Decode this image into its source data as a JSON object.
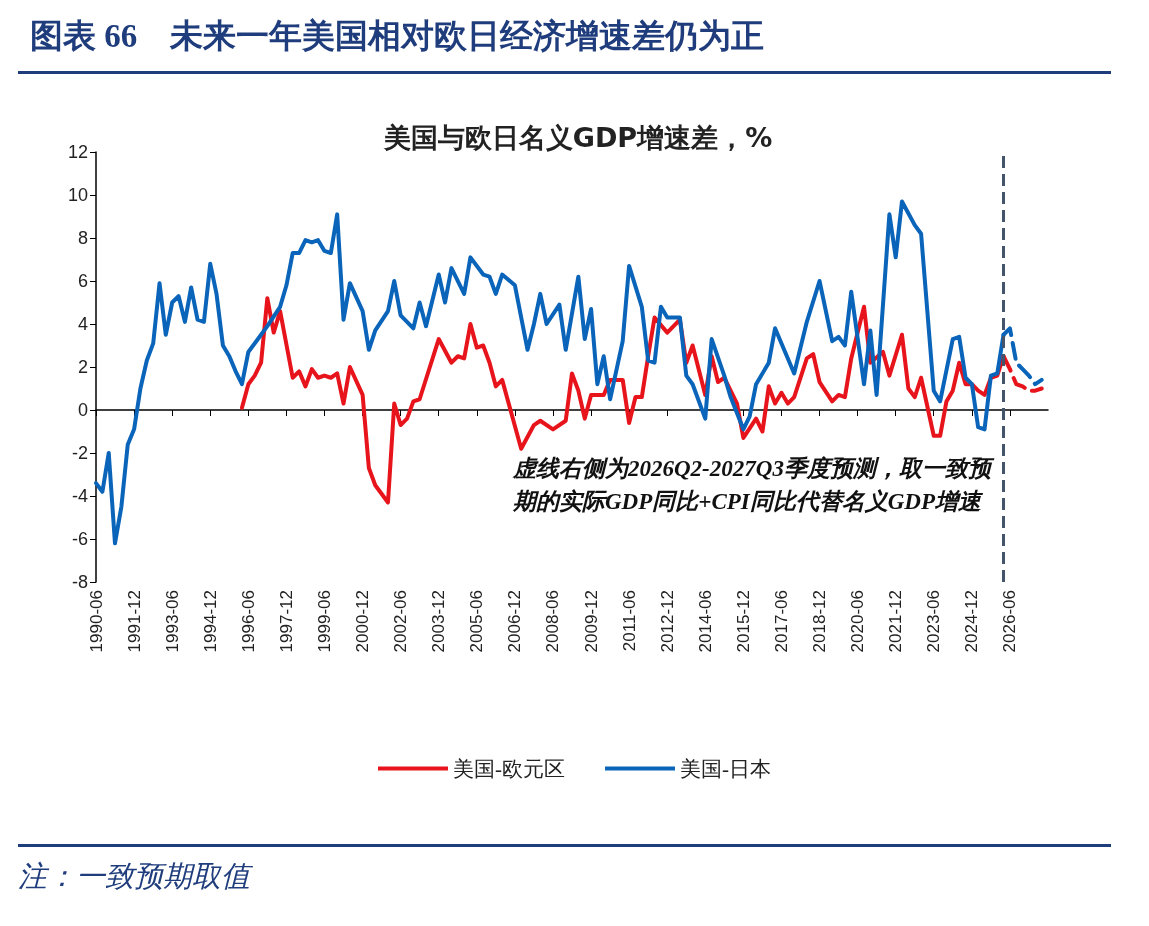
{
  "chart_data": {
    "type": "line",
    "title": "图表 66　未来一年美国相对欧日经济增速差仍为正",
    "subtitle": "美国与欧日名义GDP增速差，%",
    "series": [
      {
        "name": "美国-欧元区",
        "color": "#e8141c",
        "x": [
          "1996-03",
          "1996-06",
          "1996-09",
          "1996-12",
          "1997-03",
          "1997-06",
          "1997-09",
          "1998-03",
          "1998-06",
          "1998-09",
          "1998-12",
          "1999-03",
          "1999-06",
          "1999-09",
          "1999-12",
          "2000-03",
          "2000-06",
          "2000-12",
          "2001-03",
          "2001-06",
          "2001-12",
          "2002-03",
          "2002-06",
          "2002-09",
          "2002-12",
          "2003-03",
          "2003-12",
          "2004-06",
          "2004-09",
          "2004-12",
          "2005-03",
          "2005-06",
          "2005-09",
          "2005-12",
          "2006-03",
          "2006-06",
          "2007-03",
          "2007-09",
          "2007-12",
          "2008-06",
          "2008-12",
          "2009-03",
          "2009-06",
          "2009-09",
          "2009-12",
          "2010-06",
          "2010-09",
          "2011-03",
          "2011-06",
          "2011-09",
          "2011-12",
          "2012-03",
          "2012-06",
          "2012-12",
          "2013-06",
          "2013-09",
          "2013-12",
          "2014-06",
          "2014-09",
          "2014-12",
          "2015-03",
          "2015-06",
          "2015-09",
          "2015-12",
          "2016-06",
          "2016-09",
          "2016-12",
          "2017-03",
          "2017-06",
          "2017-09",
          "2017-12",
          "2018-06",
          "2018-09",
          "2018-12",
          "2019-06",
          "2019-09",
          "2019-12",
          "2020-03",
          "2020-09",
          "2020-12",
          "2021-06",
          "2021-09",
          "2022-03",
          "2022-06",
          "2022-09",
          "2022-12",
          "2023-06",
          "2023-09",
          "2023-12",
          "2024-03",
          "2024-06",
          "2024-09",
          "2024-12",
          "2025-03",
          "2025-06",
          "2025-09",
          "2025-12",
          "2026-03"
        ],
        "values": [
          0.1,
          1.2,
          1.6,
          2.2,
          5.2,
          3.6,
          4.6,
          1.5,
          1.8,
          1.1,
          1.9,
          1.5,
          1.6,
          1.5,
          1.7,
          0.3,
          2.0,
          0.7,
          -2.7,
          -3.5,
          -4.3,
          0.3,
          -0.7,
          -0.4,
          0.4,
          0.5,
          3.3,
          2.2,
          2.5,
          2.4,
          4.0,
          2.9,
          3.0,
          2.2,
          1.1,
          1.4,
          -1.8,
          -0.7,
          -0.5,
          -0.9,
          -0.5,
          1.7,
          0.9,
          -0.4,
          0.7,
          0.7,
          1.4,
          1.4,
          -0.6,
          0.6,
          0.6,
          2.5,
          4.3,
          3.6,
          4.2,
          2.2,
          3.0,
          0.7,
          2.5,
          1.3,
          1.5,
          0.9,
          0.3,
          -1.3,
          -0.4,
          -1.0,
          1.1,
          0.3,
          0.8,
          0.3,
          0.6,
          2.4,
          2.6,
          1.3,
          0.4,
          0.7,
          0.6,
          2.4,
          4.8,
          2.2,
          2.7,
          1.6,
          3.5,
          1.0,
          0.6,
          1.5,
          -1.2,
          -1.2,
          0.4,
          0.9,
          2.2,
          1.2,
          1.2,
          0.9,
          0.7,
          1.5,
          1.6,
          2.5
        ]
      },
      {
        "name": "美国-日本",
        "color": "#0a64b9",
        "x": [
          "1990-06",
          "1990-09",
          "1990-12",
          "1991-03",
          "1991-06",
          "1991-09",
          "1991-12",
          "1992-03",
          "1992-06",
          "1992-09",
          "1992-12",
          "1993-03",
          "1993-06",
          "1993-09",
          "1993-12",
          "1994-03",
          "1994-06",
          "1994-09",
          "1994-12",
          "1995-03",
          "1995-06",
          "1995-09",
          "1995-12",
          "1996-03",
          "1996-06",
          "1996-12",
          "1997-03",
          "1997-09",
          "1997-12",
          "1998-03",
          "1998-06",
          "1998-09",
          "1998-12",
          "1999-03",
          "1999-06",
          "1999-09",
          "1999-12",
          "2000-03",
          "2000-06",
          "2000-12",
          "2001-03",
          "2001-06",
          "2001-12",
          "2002-03",
          "2002-06",
          "2002-12",
          "2003-03",
          "2003-06",
          "2003-12",
          "2004-03",
          "2004-06",
          "2004-12",
          "2005-03",
          "2005-09",
          "2005-12",
          "2006-03",
          "2006-06",
          "2006-12",
          "2007-06",
          "2007-09",
          "2007-12",
          "2008-03",
          "2008-09",
          "2008-12",
          "2009-06",
          "2009-09",
          "2009-12",
          "2010-03",
          "2010-06",
          "2010-09",
          "2011-03",
          "2011-06",
          "2011-12",
          "2012-03",
          "2012-06",
          "2012-09",
          "2012-12",
          "2013-06",
          "2013-09",
          "2013-12",
          "2014-06",
          "2014-09",
          "2015-03",
          "2015-06",
          "2015-12",
          "2016-03",
          "2016-06",
          "2016-12",
          "2017-03",
          "2017-12",
          "2018-06",
          "2018-12",
          "2019-06",
          "2019-09",
          "2019-12",
          "2020-03",
          "2020-09",
          "2020-12",
          "2021-03",
          "2021-09",
          "2021-12",
          "2022-03",
          "2022-09",
          "2022-12",
          "2023-06",
          "2023-09",
          "2024-03",
          "2024-06",
          "2024-09",
          "2024-12",
          "2025-03",
          "2025-06",
          "2025-09",
          "2025-12",
          "2026-03"
        ],
        "values": [
          -3.4,
          -3.8,
          -2.0,
          -6.2,
          -4.5,
          -1.6,
          -0.9,
          1.0,
          2.3,
          3.1,
          5.9,
          3.5,
          5.0,
          5.3,
          4.1,
          5.7,
          4.2,
          4.1,
          6.8,
          5.4,
          3.0,
          2.5,
          1.8,
          1.2,
          2.7,
          3.5,
          3.9,
          4.8,
          5.8,
          7.3,
          7.3,
          7.9,
          7.8,
          7.9,
          7.4,
          7.3,
          9.1,
          4.2,
          5.9,
          4.6,
          2.8,
          3.7,
          4.6,
          6.0,
          4.4,
          3.8,
          5.0,
          3.9,
          6.3,
          5.0,
          6.6,
          5.4,
          7.1,
          6.3,
          6.2,
          5.4,
          6.3,
          5.8,
          2.8,
          4.0,
          5.4,
          4.0,
          4.9,
          2.8,
          6.2,
          3.3,
          4.7,
          1.2,
          2.5,
          0.5,
          3.2,
          6.7,
          4.8,
          2.3,
          2.2,
          4.8,
          4.3,
          4.3,
          1.6,
          1.2,
          -0.4,
          3.3,
          1.6,
          0.6,
          -0.9,
          -0.3,
          1.2,
          2.2,
          3.8,
          1.7,
          4.1,
          6.0,
          3.2,
          3.4,
          3.0,
          5.5,
          1.2,
          3.7,
          0.7,
          9.1,
          7.1,
          9.7,
          8.6,
          8.2,
          0.9,
          0.4,
          3.3,
          3.4,
          1.5,
          1.2,
          -0.8,
          -0.9,
          1.6,
          1.7,
          3.5
        ]
      },
      {
        "color": "#e8141c",
        "line_style": "dashed",
        "x": [
          "2026-03",
          "2026-06",
          "2026-09",
          "2026-12",
          "2027-03",
          "2027-06",
          "2027-09"
        ],
        "values": [
          2.5,
          1.9,
          1.2,
          1.1,
          0.9,
          0.9,
          1.0
        ]
      },
      {
        "color": "#0a64b9",
        "line_style": "dashed",
        "x": [
          "2026-03",
          "2026-06",
          "2026-09",
          "2026-12",
          "2027-03",
          "2027-06",
          "2027-09"
        ],
        "values": [
          3.5,
          3.8,
          2.2,
          1.9,
          1.6,
          1.2,
          1.4
        ]
      }
    ],
    "xlim": [
      "1990-06",
      "2027-12"
    ],
    "xticks": [
      "1990-06",
      "1991-12",
      "1993-06",
      "1994-12",
      "1996-06",
      "1997-12",
      "1999-06",
      "2000-12",
      "2002-06",
      "2003-12",
      "2005-06",
      "2006-12",
      "2008-06",
      "2009-12",
      "2011-06",
      "2012-12",
      "2014-06",
      "2015-12",
      "2017-06",
      "2018-12",
      "2020-06",
      "2021-12",
      "2023-06",
      "2024-12",
      "2026-06"
    ],
    "ylim": [
      -8,
      12
    ],
    "yticks": [
      -8,
      -6,
      -4,
      -2,
      0,
      2,
      4,
      6,
      8,
      10,
      12
    ],
    "ref_lines": [
      {
        "axis": "x",
        "value": "2026-03",
        "color": "#44546a",
        "line_style": "dashed"
      }
    ],
    "annotations": [
      "虚线右侧为2026Q2-2027Q3季度预测，取一致预期的实际GDP同比+CPI同比代替名义GDP增速",
      "注：一致预期取值"
    ],
    "legend": "bottom",
    "marker": "none",
    "line_style": "solid"
  }
}
